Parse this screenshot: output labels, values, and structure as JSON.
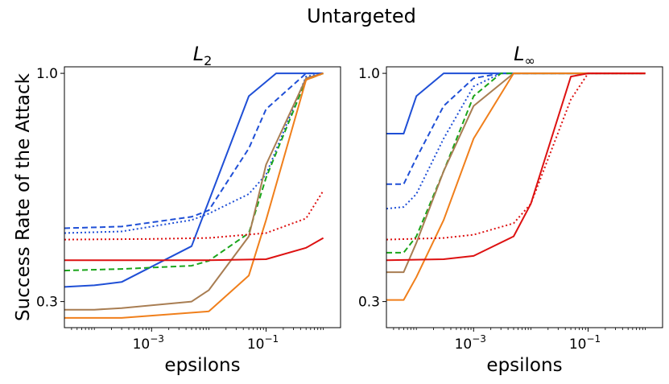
{
  "figure": {
    "suptitle": "Untargeted"
  },
  "chart_data": [
    {
      "type": "line",
      "title_base": "L",
      "title_sub": "2",
      "xlabel": "epsilons",
      "ylabel": "Success Rate of the Attack",
      "xscale": "log",
      "xlim": [
        3e-05,
        2.0
      ],
      "ylim": [
        0.22,
        1.02
      ],
      "yticks": [
        {
          "value": 0.3,
          "label": "0.3"
        },
        {
          "value": 1.0,
          "label": "1.0"
        }
      ],
      "xticks": [
        {
          "value": 0.001,
          "label": "10",
          "exp": "−3"
        },
        {
          "value": 0.1,
          "label": "10",
          "exp": "−1"
        }
      ],
      "series": [
        {
          "name": "blue-solid",
          "color": "#1f4fd6",
          "dash": "solid",
          "x": [
            3e-05,
            0.0001,
            0.0003,
            0.005,
            0.05,
            0.15,
            1.0
          ],
          "y": [
            0.345,
            0.35,
            0.36,
            0.47,
            0.93,
            1.0,
            1.0
          ]
        },
        {
          "name": "blue-dashed",
          "color": "#1f4fd6",
          "dash": "dashed",
          "x": [
            3e-05,
            0.0003,
            0.005,
            0.01,
            0.05,
            0.1,
            0.5,
            1.0
          ],
          "y": [
            0.525,
            0.53,
            0.56,
            0.58,
            0.77,
            0.89,
            1.0,
            1.0
          ]
        },
        {
          "name": "blue-dotted",
          "color": "#1f4fd6",
          "dash": "dotted",
          "x": [
            3e-05,
            0.0003,
            0.005,
            0.01,
            0.05,
            0.1,
            0.5,
            1.0
          ],
          "y": [
            0.51,
            0.515,
            0.55,
            0.57,
            0.63,
            0.69,
            0.99,
            1.0
          ]
        },
        {
          "name": "green-dashed",
          "color": "#1aa51a",
          "dash": "dashed",
          "x": [
            3e-05,
            0.0003,
            0.005,
            0.01,
            0.05,
            0.1,
            0.5,
            1.0
          ],
          "y": [
            0.395,
            0.4,
            0.41,
            0.425,
            0.51,
            0.68,
            0.98,
            1.0
          ]
        },
        {
          "name": "brown-solid",
          "color": "#a87d52",
          "dash": "solid",
          "x": [
            3e-05,
            0.0001,
            0.0003,
            0.005,
            0.01,
            0.05,
            0.1,
            0.5,
            1.0
          ],
          "y": [
            0.275,
            0.275,
            0.28,
            0.3,
            0.335,
            0.5,
            0.72,
            0.985,
            1.0
          ]
        },
        {
          "name": "orange-solid",
          "color": "#f07f1b",
          "dash": "solid",
          "x": [
            3e-05,
            0.0001,
            0.0003,
            0.01,
            0.05,
            0.1,
            0.5,
            1.0
          ],
          "y": [
            0.25,
            0.25,
            0.25,
            0.27,
            0.38,
            0.55,
            0.98,
            1.0
          ]
        },
        {
          "name": "red-solid",
          "color": "#dd1111",
          "dash": "solid",
          "x": [
            3e-05,
            0.001,
            0.01,
            0.1,
            0.5,
            1.0
          ],
          "y": [
            0.427,
            0.427,
            0.427,
            0.43,
            0.465,
            0.495
          ]
        },
        {
          "name": "red-dotted",
          "color": "#dd1111",
          "dash": "dotted",
          "x": [
            3e-05,
            0.001,
            0.01,
            0.1,
            0.5,
            1.0
          ],
          "y": [
            0.49,
            0.492,
            0.495,
            0.51,
            0.555,
            0.64
          ]
        }
      ]
    },
    {
      "type": "line",
      "title_base": "L",
      "title_sub": "∞",
      "xlabel": "epsilons",
      "xscale": "log",
      "xlim": [
        3e-05,
        2.0
      ],
      "ylim": [
        0.22,
        1.02
      ],
      "yticks": [
        {
          "value": 0.3,
          "label": "0.3"
        },
        {
          "value": 1.0,
          "label": "1.0"
        }
      ],
      "xticks": [
        {
          "value": 0.001,
          "label": "10",
          "exp": "−3"
        },
        {
          "value": 0.1,
          "label": "10",
          "exp": "−1"
        }
      ],
      "series": [
        {
          "name": "blue-solid",
          "color": "#1f4fd6",
          "dash": "solid",
          "x": [
            3e-05,
            6e-05,
            0.0001,
            0.0003,
            0.001,
            0.01,
            1.0
          ],
          "y": [
            0.815,
            0.815,
            0.93,
            1.0,
            1.0,
            1.0,
            1.0
          ]
        },
        {
          "name": "blue-dashed",
          "color": "#1f4fd6",
          "dash": "dashed",
          "x": [
            3e-05,
            6e-05,
            0.0001,
            0.0003,
            0.001,
            0.003,
            1.0
          ],
          "y": [
            0.66,
            0.66,
            0.74,
            0.9,
            0.985,
            1.0,
            1.0
          ]
        },
        {
          "name": "blue-dotted",
          "color": "#1f4fd6",
          "dash": "dotted",
          "x": [
            3e-05,
            6e-05,
            0.0001,
            0.0003,
            0.001,
            0.003,
            1.0
          ],
          "y": [
            0.585,
            0.59,
            0.63,
            0.8,
            0.96,
            1.0,
            1.0
          ]
        },
        {
          "name": "green-dashed",
          "color": "#1aa51a",
          "dash": "dashed",
          "x": [
            3e-05,
            6e-05,
            0.0001,
            0.0003,
            0.001,
            0.003,
            1.0
          ],
          "y": [
            0.45,
            0.45,
            0.5,
            0.7,
            0.93,
            1.0,
            1.0
          ]
        },
        {
          "name": "brown-solid",
          "color": "#a87d52",
          "dash": "solid",
          "x": [
            3e-05,
            6e-05,
            0.0001,
            0.0003,
            0.001,
            0.005,
            1.0
          ],
          "y": [
            0.39,
            0.39,
            0.48,
            0.7,
            0.9,
            1.0,
            1.0
          ]
        },
        {
          "name": "orange-solid",
          "color": "#f07f1b",
          "dash": "solid",
          "x": [
            3e-05,
            6e-05,
            0.0001,
            0.0003,
            0.001,
            0.005,
            1.0
          ],
          "y": [
            0.305,
            0.305,
            0.375,
            0.55,
            0.8,
            1.0,
            1.0
          ]
        },
        {
          "name": "red-solid",
          "color": "#dd1111",
          "dash": "solid",
          "x": [
            3e-05,
            0.0003,
            0.001,
            0.005,
            0.01,
            0.05,
            0.1,
            1.0
          ],
          "y": [
            0.427,
            0.43,
            0.44,
            0.5,
            0.6,
            0.99,
            1.0,
            1.0
          ]
        },
        {
          "name": "red-dotted",
          "color": "#dd1111",
          "dash": "dotted",
          "x": [
            3e-05,
            0.0003,
            0.001,
            0.005,
            0.01,
            0.05,
            0.1,
            1.0
          ],
          "y": [
            0.49,
            0.495,
            0.505,
            0.54,
            0.6,
            0.92,
            1.0,
            1.0
          ]
        }
      ]
    }
  ]
}
